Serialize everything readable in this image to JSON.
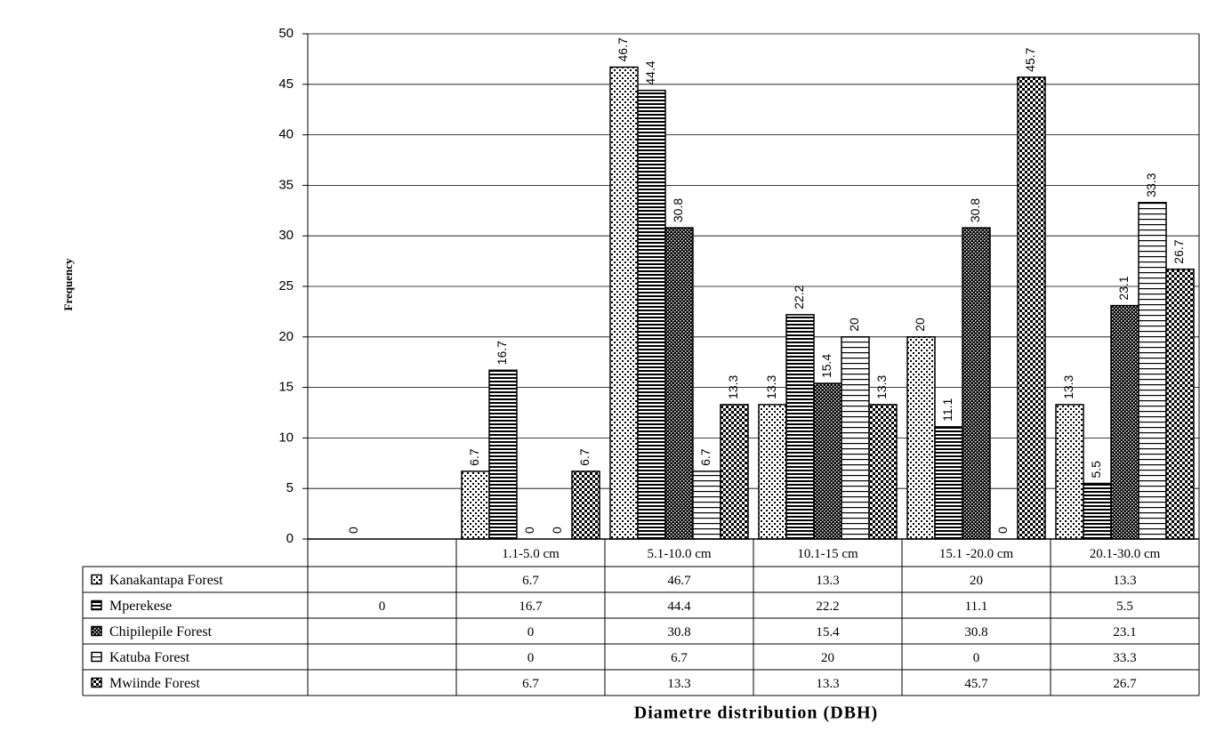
{
  "chart_data": {
    "type": "bar",
    "y_label": "Frequency",
    "x_label": "Diametre distribution (DBH)",
    "categories": [
      null,
      "1.1-5.0 cm",
      "5.1-10.0 cm",
      "10.1-15 cm",
      "15.1 -20.0 cm",
      "20.1-30.0 cm"
    ],
    "series": [
      {
        "name": "Kanakantapa Forest",
        "color": "#000000",
        "values": [
          null,
          6.7,
          46.7,
          13.3,
          20,
          13.3
        ]
      },
      {
        "name": "Mperekese",
        "color": "#000000",
        "values": [
          0,
          16.7,
          44.4,
          22.2,
          11.1,
          5.5
        ]
      },
      {
        "name": "Chipilepile Forest",
        "color": "#000000",
        "values": [
          null,
          0,
          30.8,
          15.4,
          30.8,
          23.1
        ]
      },
      {
        "name": "Katuba Forest",
        "color": "#000000",
        "values": [
          null,
          0,
          6.7,
          20,
          0,
          33.3
        ]
      },
      {
        "name": "Mwiinde Forest",
        "color": "#000000",
        "values": [
          null,
          6.7,
          13.3,
          13.3,
          45.7,
          26.7
        ]
      }
    ],
    "ylim": [
      0,
      50
    ],
    "yticks": [
      0,
      5,
      10,
      15,
      20,
      25,
      30,
      35,
      40,
      45,
      50
    ],
    "grid": true
  }
}
